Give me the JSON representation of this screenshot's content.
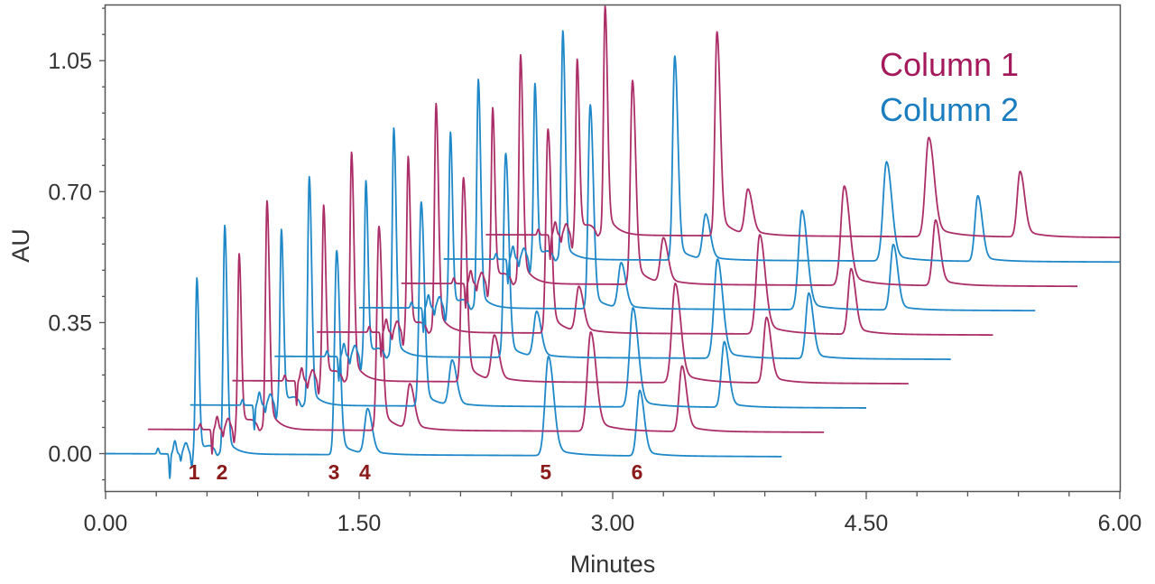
{
  "chart_data": {
    "type": "line",
    "style": "waterfall (stacked, offset chromatograms)",
    "xlabel": "Minutes",
    "ylabel": "AU",
    "xlim": [
      0,
      6
    ],
    "ylim": [
      -0.1,
      1.2
    ],
    "xticks": [
      0,
      1.5,
      3.0,
      4.5,
      6.0
    ],
    "xtick_labels": [
      "0.00",
      "1.50",
      "3.00",
      "4.50",
      "6.00"
    ],
    "x_minor_step": 0.3,
    "yticks": [
      0,
      0.35,
      0.7,
      1.05
    ],
    "ytick_labels": [
      "0.00",
      "0.35",
      "0.70",
      "1.05"
    ],
    "y_minor_step": 0.07,
    "grid": false,
    "legend": {
      "position": "top-right",
      "entries": [
        {
          "name": "Column 1",
          "color": "#a3195b"
        },
        {
          "name": "Column 2",
          "color": "#1a7dc0"
        }
      ]
    },
    "series": [
      {
        "name": "Column 2",
        "color": "#1e88c8",
        "x_offset_min": 0.0,
        "y_offset_au": 0.0,
        "duration_min": 4.0
      },
      {
        "name": "Column 1",
        "color": "#ab2e68",
        "x_offset_min": 0.25,
        "y_offset_au": 0.065,
        "duration_min": 4.0
      },
      {
        "name": "Column 2",
        "color": "#1e88c8",
        "x_offset_min": 0.5,
        "y_offset_au": 0.13,
        "duration_min": 4.0
      },
      {
        "name": "Column 1",
        "color": "#ab2e68",
        "x_offset_min": 0.75,
        "y_offset_au": 0.195,
        "duration_min": 4.0
      },
      {
        "name": "Column 2",
        "color": "#1e88c8",
        "x_offset_min": 1.0,
        "y_offset_au": 0.26,
        "duration_min": 4.0
      },
      {
        "name": "Column 1",
        "color": "#ab2e68",
        "x_offset_min": 1.25,
        "y_offset_au": 0.325,
        "duration_min": 4.0
      },
      {
        "name": "Column 2",
        "color": "#1e88c8",
        "x_offset_min": 1.5,
        "y_offset_au": 0.39,
        "duration_min": 4.0
      },
      {
        "name": "Column 1",
        "color": "#ab2e68",
        "x_offset_min": 1.75,
        "y_offset_au": 0.455,
        "duration_min": 4.0
      },
      {
        "name": "Column 2",
        "color": "#1e88c8",
        "x_offset_min": 2.0,
        "y_offset_au": 0.52,
        "duration_min": 4.0
      },
      {
        "name": "Column 1",
        "color": "#ab2e68",
        "x_offset_min": 2.25,
        "y_offset_au": 0.585,
        "duration_min": 4.0
      }
    ],
    "peaks": [
      {
        "label": "1",
        "time_min": 0.54,
        "height_au": 0.47
      },
      {
        "label": "2",
        "time_min": 0.705,
        "height_au": 0.61
      },
      {
        "label": "3",
        "time_min": 1.367,
        "height_au": 0.545
      },
      {
        "label": "4",
        "time_min": 1.55,
        "height_au": 0.12
      },
      {
        "label": "5",
        "time_min": 2.62,
        "height_au": 0.265
      },
      {
        "label": "6",
        "time_min": 3.16,
        "height_au": 0.175
      }
    ],
    "peak_label_color": "#8b1a1a"
  }
}
